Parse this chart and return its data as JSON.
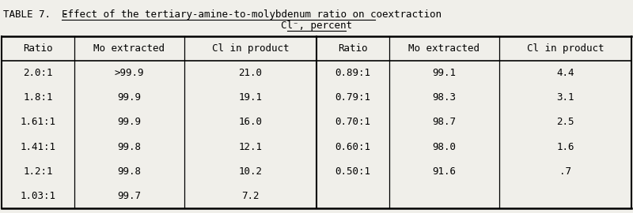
{
  "title_prefix": "TABLE 7.  - ",
  "title_underlined": "Effect of the tertiary-amine-to-molybdenum ratio on coextraction",
  "title_line2": "Cl⁻, percent",
  "col_headers": [
    "Ratio",
    "Mo extracted",
    "Cl in product",
    "Ratio",
    "Mo extracted",
    "Cl in product"
  ],
  "left_data": [
    [
      "2.0:1",
      ">99.9",
      "21.0"
    ],
    [
      "1.8:1",
      "99.9",
      "19.1"
    ],
    [
      "1.61:1",
      "99.9",
      "16.0"
    ],
    [
      "1.41:1",
      "99.8",
      "12.1"
    ],
    [
      "1.2:1",
      "99.8",
      "10.2"
    ],
    [
      "1.03:1",
      "99.7",
      "7.2"
    ]
  ],
  "right_data": [
    [
      "0.89:1",
      "99.1",
      "4.4"
    ],
    [
      "0.79:1",
      "98.3",
      "3.1"
    ],
    [
      "0.70:1",
      "98.7",
      "2.5"
    ],
    [
      "0.60:1",
      "98.0",
      "1.6"
    ],
    [
      "0.50:1",
      "91.6",
      ".7"
    ],
    [
      "",
      "",
      ""
    ]
  ],
  "bg_color": "#f0efea",
  "font_size": 9.0
}
